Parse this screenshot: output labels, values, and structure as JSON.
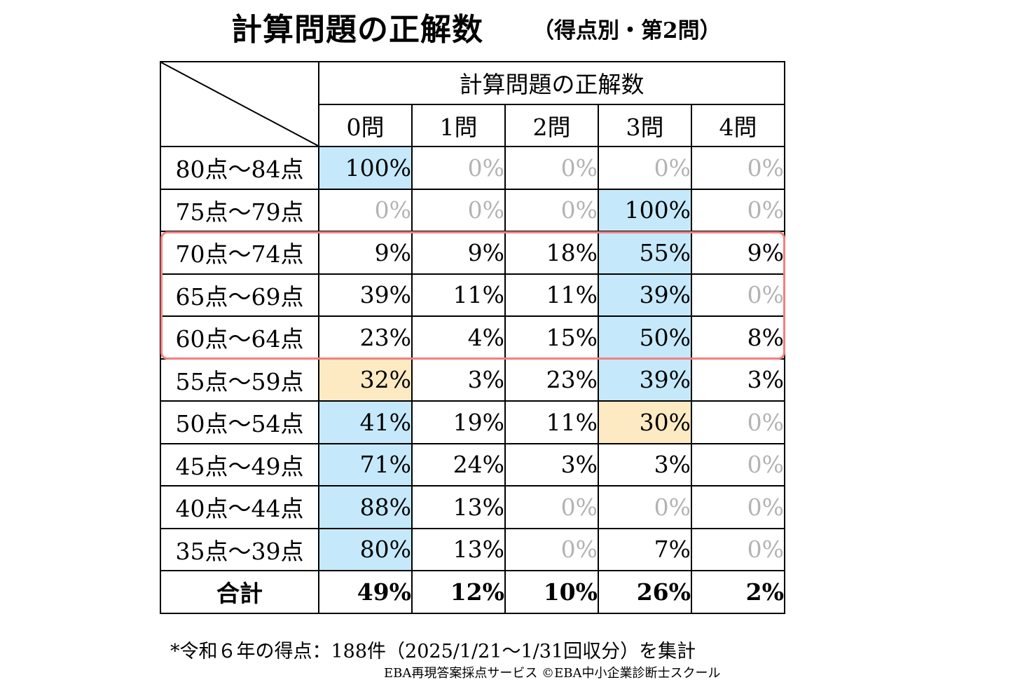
{
  "title": {
    "main": "計算問題の正解数",
    "sub": "（得点別・第2問）"
  },
  "table": {
    "group_header": "計算問題の正解数",
    "columns": [
      "0問",
      "1問",
      "2問",
      "3問",
      "4問"
    ]
  },
  "chart_data": {
    "type": "table",
    "title": "計算問題の正解数",
    "subtitle": "（得点別・第2問）",
    "column_group": "計算問題の正解数",
    "columns": [
      "0問",
      "1問",
      "2問",
      "3問",
      "4問"
    ],
    "rows": [
      {
        "label": "80点〜84点",
        "values": [
          "100%",
          "0%",
          "0%",
          "0%",
          "0%"
        ],
        "highlight": [
          "blue",
          "",
          "",
          "",
          ""
        ]
      },
      {
        "label": "75点〜79点",
        "values": [
          "0%",
          "0%",
          "0%",
          "100%",
          "0%"
        ],
        "highlight": [
          "",
          "",
          "",
          "blue",
          ""
        ]
      },
      {
        "label": "70点〜74点",
        "values": [
          "9%",
          "9%",
          "18%",
          "55%",
          "9%"
        ],
        "highlight": [
          "",
          "",
          "",
          "blue",
          ""
        ]
      },
      {
        "label": "65点〜69点",
        "values": [
          "39%",
          "11%",
          "11%",
          "39%",
          "0%"
        ],
        "highlight": [
          "",
          "",
          "",
          "blue",
          ""
        ]
      },
      {
        "label": "60点〜64点",
        "values": [
          "23%",
          "4%",
          "15%",
          "50%",
          "8%"
        ],
        "highlight": [
          "",
          "",
          "",
          "blue",
          ""
        ]
      },
      {
        "label": "55点〜59点",
        "values": [
          "32%",
          "3%",
          "23%",
          "39%",
          "3%"
        ],
        "highlight": [
          "orange",
          "",
          "",
          "blue",
          ""
        ]
      },
      {
        "label": "50点〜54点",
        "values": [
          "41%",
          "19%",
          "11%",
          "30%",
          "0%"
        ],
        "highlight": [
          "blue",
          "",
          "",
          "orange",
          ""
        ]
      },
      {
        "label": "45点〜49点",
        "values": [
          "71%",
          "24%",
          "3%",
          "3%",
          "0%"
        ],
        "highlight": [
          "blue",
          "",
          "",
          "",
          ""
        ]
      },
      {
        "label": "40点〜44点",
        "values": [
          "88%",
          "13%",
          "0%",
          "0%",
          "0%"
        ],
        "highlight": [
          "blue",
          "",
          "",
          "",
          ""
        ]
      },
      {
        "label": "35点〜39点",
        "values": [
          "80%",
          "13%",
          "0%",
          "7%",
          "0%"
        ],
        "highlight": [
          "blue",
          "",
          "",
          "",
          ""
        ]
      }
    ],
    "total": {
      "label": "合計",
      "values": [
        "49%",
        "12%",
        "10%",
        "26%",
        "2%"
      ]
    },
    "highlighted_rows": [
      "70点〜74点",
      "65点〜69点",
      "60点〜64点"
    ]
  },
  "colors": {
    "highlight_blue": "#c5e9fa",
    "highlight_orange": "#fdeac3",
    "zero_text": "#b3b3b3",
    "frame": "#f18080"
  },
  "footnote": "*令和６年の得点：188件（2025/1/21〜1/31回収分）を集計",
  "credit": "EBA再現答案採点サービス ©EBA中小企業診断士スクール"
}
